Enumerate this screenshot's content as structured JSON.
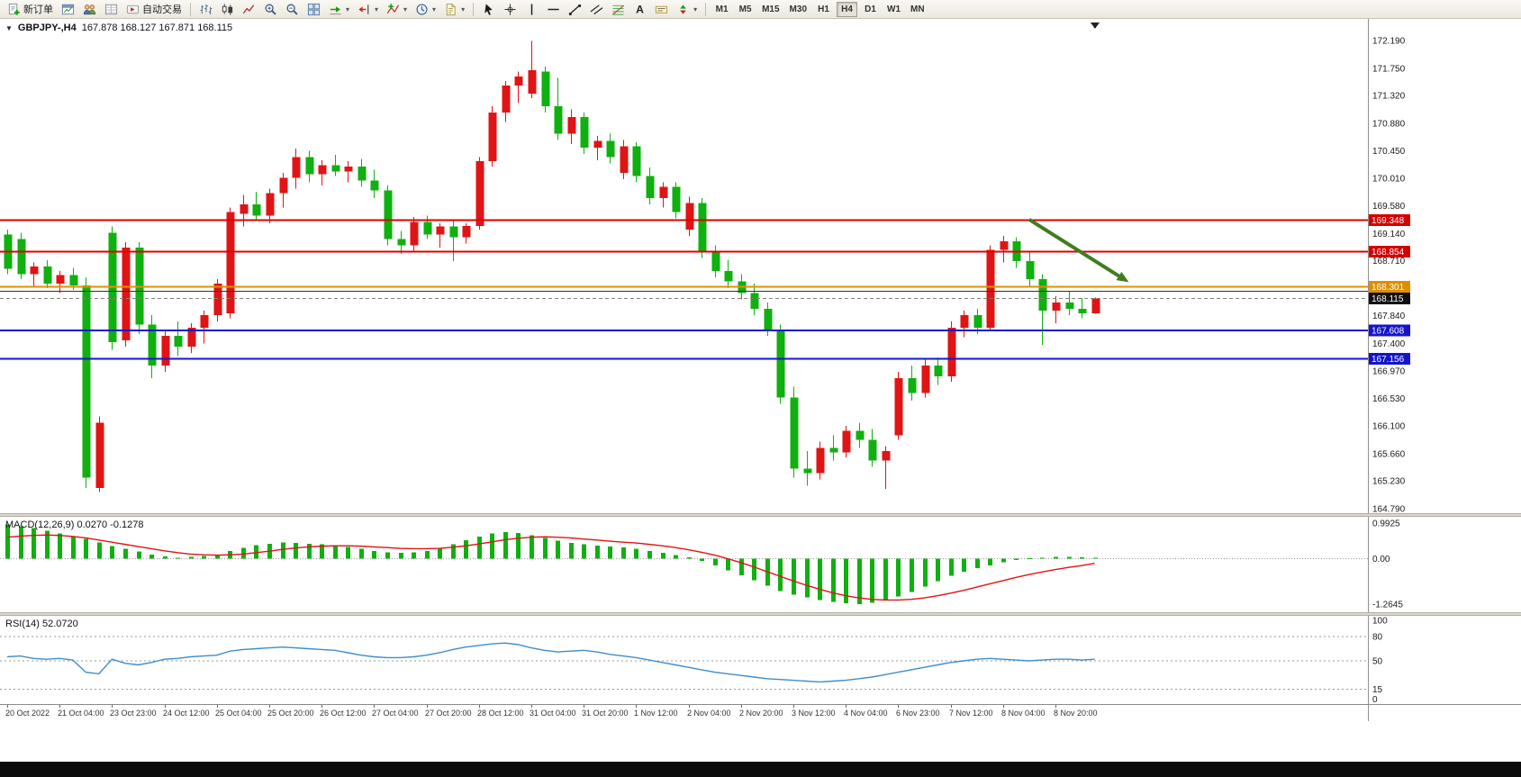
{
  "toolbar": {
    "new_order_label": "新订单",
    "autotrading_label": "自动交易",
    "left_items": [
      {
        "kind": "labeled",
        "name": "new-order-button",
        "icon": "new-order-icon",
        "label": "新订单"
      },
      {
        "kind": "icon",
        "name": "charts-button",
        "icon": "chart-window-icon"
      },
      {
        "kind": "icon",
        "name": "profiles-button",
        "icon": "profiles-icon"
      },
      {
        "kind": "icon",
        "name": "data-window-button",
        "icon": "data-window-icon"
      },
      {
        "kind": "labeled",
        "name": "autotrading-button",
        "icon": "autotrading-icon",
        "label": "自动交易"
      },
      {
        "kind": "sep"
      },
      {
        "kind": "icon",
        "name": "bar-chart-button",
        "icon": "bar-chart-icon"
      },
      {
        "kind": "icon",
        "name": "candlestick-chart-button",
        "icon": "candlestick-icon"
      },
      {
        "kind": "icon",
        "name": "line-chart-button",
        "icon": "line-chart-icon"
      },
      {
        "kind": "icon",
        "name": "zoom-in-button",
        "icon": "zoom-in-icon"
      },
      {
        "kind": "icon",
        "name": "zoom-out-button",
        "icon": "zoom-out-icon"
      },
      {
        "kind": "icon",
        "name": "tile-windows-button",
        "icon": "tile-windows-icon"
      },
      {
        "kind": "icon-dd",
        "name": "auto-scroll-button",
        "icon": "auto-scroll-icon"
      },
      {
        "kind": "icon-dd",
        "name": "chart-shift-button",
        "icon": "chart-shift-icon"
      },
      {
        "kind": "icon-dd",
        "name": "indicators-button",
        "icon": "indicators-icon"
      },
      {
        "kind": "icon-dd",
        "name": "periods-button",
        "icon": "periods-icon"
      },
      {
        "kind": "icon-dd",
        "name": "templates-button",
        "icon": "templates-icon"
      },
      {
        "kind": "sep"
      },
      {
        "kind": "icon",
        "name": "cursor-button",
        "icon": "cursor-icon"
      },
      {
        "kind": "icon",
        "name": "crosshair-button",
        "icon": "crosshair-icon"
      },
      {
        "kind": "icon",
        "name": "vertical-line-button",
        "icon": "vertical-line-icon"
      },
      {
        "kind": "icon",
        "name": "horizontal-line-button",
        "icon": "horizontal-line-icon"
      },
      {
        "kind": "icon",
        "name": "trendline-button",
        "icon": "trendline-icon"
      },
      {
        "kind": "icon",
        "name": "channel-button",
        "icon": "channel-icon"
      },
      {
        "kind": "icon",
        "name": "fibonacci-button",
        "icon": "fibonacci-icon"
      },
      {
        "kind": "icon",
        "name": "text-button",
        "icon": "text-icon"
      },
      {
        "kind": "icon",
        "name": "text-label-button",
        "icon": "text-label-icon"
      },
      {
        "kind": "icon-dd",
        "name": "arrows-button",
        "icon": "arrows-icon"
      },
      {
        "kind": "sep"
      }
    ],
    "timeframes": [
      "M1",
      "M5",
      "M15",
      "M30",
      "H1",
      "H4",
      "D1",
      "W1",
      "MN"
    ],
    "active_timeframe": "H4",
    "notification_count": "1"
  },
  "chart": {
    "title": "GBPJPY-,H4",
    "ohlc": "167.878 168.127 167.871 168.115"
  },
  "chart_data": {
    "type": "candlestick",
    "symbol": "GBPJPY-",
    "timeframe": "H4",
    "main": {
      "up_color": "#e01414",
      "down_color": "#0fb00f",
      "price_axis_labels": [
        "172.190",
        "171.750",
        "171.320",
        "170.880",
        "170.450",
        "170.010",
        "169.580",
        "169.140",
        "168.710",
        "167.840",
        "167.400",
        "166.970",
        "166.530",
        "166.100",
        "165.660",
        "165.230",
        "164.790"
      ],
      "candles": [
        [
          169.12,
          169.2,
          168.5,
          168.58
        ],
        [
          169.05,
          169.15,
          168.42,
          168.5
        ],
        [
          168.5,
          168.68,
          168.3,
          168.62
        ],
        [
          168.62,
          168.72,
          168.28,
          168.35
        ],
        [
          168.35,
          168.55,
          168.2,
          168.48
        ],
        [
          168.48,
          168.6,
          168.25,
          168.32
        ],
        [
          168.32,
          168.45,
          165.12,
          165.28
        ],
        [
          165.12,
          166.25,
          165.05,
          166.15
        ],
        [
          169.15,
          169.25,
          167.3,
          167.42
        ],
        [
          167.45,
          169.0,
          167.35,
          168.92
        ],
        [
          168.92,
          169.0,
          167.55,
          167.7
        ],
        [
          167.7,
          167.85,
          166.85,
          167.05
        ],
        [
          167.05,
          167.62,
          166.95,
          167.52
        ],
        [
          167.52,
          167.75,
          167.2,
          167.35
        ],
        [
          167.35,
          167.72,
          167.25,
          167.65
        ],
        [
          167.65,
          167.92,
          167.4,
          167.85
        ],
        [
          167.85,
          168.42,
          167.75,
          168.35
        ],
        [
          167.88,
          169.55,
          167.8,
          169.48
        ],
        [
          169.45,
          169.75,
          169.25,
          169.6
        ],
        [
          169.6,
          169.8,
          169.35,
          169.42
        ],
        [
          169.42,
          169.85,
          169.3,
          169.78
        ],
        [
          169.78,
          170.1,
          169.55,
          170.02
        ],
        [
          170.02,
          170.48,
          169.85,
          170.35
        ],
        [
          170.35,
          170.45,
          169.95,
          170.08
        ],
        [
          170.08,
          170.3,
          169.9,
          170.22
        ],
        [
          170.22,
          170.38,
          170.05,
          170.12
        ],
        [
          170.12,
          170.28,
          169.95,
          170.2
        ],
        [
          170.2,
          170.32,
          169.88,
          169.98
        ],
        [
          169.98,
          170.15,
          169.7,
          169.82
        ],
        [
          169.82,
          169.9,
          168.95,
          169.05
        ],
        [
          169.05,
          169.18,
          168.82,
          168.95
        ],
        [
          168.95,
          169.4,
          168.85,
          169.32
        ],
        [
          169.32,
          169.42,
          169.05,
          169.12
        ],
        [
          169.12,
          169.3,
          168.92,
          169.25
        ],
        [
          169.25,
          169.35,
          168.7,
          169.08
        ],
        [
          169.08,
          169.3,
          168.98,
          169.26
        ],
        [
          169.26,
          170.35,
          169.2,
          170.28
        ],
        [
          170.28,
          171.15,
          170.2,
          171.05
        ],
        [
          171.05,
          171.55,
          170.9,
          171.48
        ],
        [
          171.48,
          171.7,
          171.2,
          171.62
        ],
        [
          171.35,
          172.18,
          171.28,
          171.72
        ],
        [
          171.7,
          171.78,
          171.05,
          171.15
        ],
        [
          171.15,
          171.6,
          170.62,
          170.72
        ],
        [
          170.72,
          171.1,
          170.55,
          170.98
        ],
        [
          170.98,
          171.05,
          170.4,
          170.5
        ],
        [
          170.5,
          170.68,
          170.3,
          170.6
        ],
        [
          170.6,
          170.72,
          170.25,
          170.35
        ],
        [
          170.1,
          170.62,
          170.0,
          170.52
        ],
        [
          170.52,
          170.58,
          169.95,
          170.05
        ],
        [
          170.05,
          170.18,
          169.6,
          169.7
        ],
        [
          169.7,
          169.95,
          169.55,
          169.88
        ],
        [
          169.88,
          169.95,
          169.38,
          169.48
        ],
        [
          169.2,
          169.72,
          169.1,
          169.62
        ],
        [
          169.62,
          169.7,
          168.75,
          168.85
        ],
        [
          168.85,
          168.95,
          168.45,
          168.55
        ],
        [
          168.55,
          168.72,
          168.28,
          168.38
        ],
        [
          168.38,
          168.5,
          168.1,
          168.2
        ],
        [
          168.2,
          168.35,
          167.85,
          167.95
        ],
        [
          167.95,
          168.05,
          167.52,
          167.62
        ],
        [
          167.62,
          167.7,
          166.45,
          166.55
        ],
        [
          166.55,
          166.72,
          165.28,
          165.42
        ],
        [
          165.42,
          165.7,
          165.15,
          165.35
        ],
        [
          165.35,
          165.85,
          165.25,
          165.75
        ],
        [
          165.75,
          165.95,
          165.55,
          165.68
        ],
        [
          165.68,
          166.1,
          165.6,
          166.02
        ],
        [
          166.02,
          166.15,
          165.75,
          165.88
        ],
        [
          165.88,
          166.05,
          165.45,
          165.55
        ],
        [
          165.55,
          165.78,
          165.1,
          165.7
        ],
        [
          165.95,
          166.95,
          165.88,
          166.85
        ],
        [
          166.85,
          167.05,
          166.5,
          166.62
        ],
        [
          166.62,
          167.15,
          166.55,
          167.05
        ],
        [
          167.05,
          167.18,
          166.75,
          166.88
        ],
        [
          166.88,
          167.75,
          166.8,
          167.65
        ],
        [
          167.65,
          167.92,
          167.5,
          167.85
        ],
        [
          167.85,
          167.95,
          167.55,
          167.65
        ],
        [
          167.65,
          168.95,
          167.6,
          168.88
        ],
        [
          168.88,
          169.1,
          168.68,
          169.02
        ],
        [
          169.02,
          169.08,
          168.6,
          168.7
        ],
        [
          168.7,
          168.85,
          168.3,
          168.42
        ],
        [
          168.42,
          168.5,
          167.38,
          167.92
        ],
        [
          167.92,
          168.15,
          167.72,
          168.05
        ],
        [
          168.05,
          168.22,
          167.85,
          167.95
        ],
        [
          167.95,
          168.12,
          167.8,
          167.88
        ],
        [
          167.878,
          168.127,
          167.871,
          168.115
        ]
      ],
      "hlines": [
        {
          "price": 169.348,
          "color": "#e00000",
          "width": 2,
          "label": "169.348",
          "label_bg": "#d40000"
        },
        {
          "price": 168.854,
          "color": "#e00000",
          "width": 2,
          "label": "168.854",
          "label_bg": "#d40000"
        },
        {
          "price": 168.301,
          "color": "#e09000",
          "width": 2,
          "label": "168.301",
          "label_bg": "#dd8f00"
        },
        {
          "price": 168.225,
          "color": "#303030",
          "width": 1
        },
        {
          "price": 167.608,
          "color": "#1616d0",
          "width": 2,
          "label": "167.608",
          "label_bg": "#1414cc"
        },
        {
          "price": 167.156,
          "color": "#1616d0",
          "width": 2,
          "label": "167.156",
          "label_bg": "#1414cc"
        }
      ],
      "bid_line": {
        "price": 168.115,
        "label": "168.115",
        "label_bg": "#101010",
        "color": "#808080"
      },
      "arrow": {
        "from_index": 78,
        "from_price": 169.36,
        "to_index": 85.6,
        "to_price": 168.37,
        "color": "#3f7d1e",
        "width": 4
      },
      "date_labels": [
        "20 Oct 2022",
        "21 Oct 04:00",
        "23 Oct 23:00",
        "24 Oct 12:00",
        "25 Oct 04:00",
        "25 Oct 20:00",
        "26 Oct 12:00",
        "27 Oct 04:00",
        "27 Oct 20:00",
        "28 Oct 12:00",
        "31 Oct 04:00",
        "31 Oct 20:00",
        "1 Nov 12:00",
        "2 Nov 04:00",
        "2 Nov 20:00",
        "3 Nov 12:00",
        "4 Nov 04:00",
        "6 Nov 23:00",
        "7 Nov 12:00",
        "8 Nov 04:00",
        "8 Nov 20:00"
      ]
    },
    "macd": {
      "label": "MACD(12,26,9) 0.0270 -0.1278",
      "axis_labels": [
        "0.9925",
        "0.00",
        "-1.2645"
      ],
      "hist_color": "#0fb00f",
      "signal_color": "#e01414",
      "hist": [
        0.95,
        0.9,
        0.85,
        0.78,
        0.7,
        0.62,
        0.55,
        0.45,
        0.35,
        0.28,
        0.2,
        0.12,
        0.06,
        0.03,
        0.05,
        0.08,
        0.12,
        0.22,
        0.3,
        0.38,
        0.42,
        0.45,
        0.44,
        0.42,
        0.4,
        0.38,
        0.33,
        0.28,
        0.22,
        0.18,
        0.16,
        0.18,
        0.22,
        0.3,
        0.4,
        0.52,
        0.62,
        0.7,
        0.74,
        0.72,
        0.66,
        0.58,
        0.5,
        0.44,
        0.4,
        0.36,
        0.34,
        0.32,
        0.28,
        0.22,
        0.16,
        0.1,
        0.04,
        -0.06,
        -0.18,
        -0.32,
        -0.46,
        -0.6,
        -0.75,
        -0.9,
        -1.0,
        -1.08,
        -1.15,
        -1.2,
        -1.24,
        -1.26,
        -1.23,
        -1.16,
        -1.05,
        -0.92,
        -0.78,
        -0.62,
        -0.48,
        -0.36,
        -0.26,
        -0.18,
        -0.1,
        -0.04,
        0.01,
        0.03,
        0.05,
        0.05,
        0.04,
        0.027
      ],
      "signal": [
        0.6,
        0.63,
        0.65,
        0.66,
        0.65,
        0.62,
        0.58,
        0.52,
        0.46,
        0.4,
        0.34,
        0.28,
        0.22,
        0.17,
        0.13,
        0.11,
        0.1,
        0.11,
        0.13,
        0.17,
        0.21,
        0.26,
        0.3,
        0.33,
        0.35,
        0.36,
        0.36,
        0.35,
        0.33,
        0.31,
        0.29,
        0.28,
        0.28,
        0.29,
        0.32,
        0.36,
        0.41,
        0.47,
        0.53,
        0.57,
        0.6,
        0.61,
        0.6,
        0.58,
        0.55,
        0.52,
        0.49,
        0.46,
        0.44,
        0.4,
        0.36,
        0.31,
        0.25,
        0.18,
        0.1,
        0.0,
        -0.11,
        -0.23,
        -0.36,
        -0.49,
        -0.62,
        -0.74,
        -0.85,
        -0.95,
        -1.03,
        -1.09,
        -1.13,
        -1.15,
        -1.15,
        -1.13,
        -1.09,
        -1.03,
        -0.96,
        -0.88,
        -0.79,
        -0.7,
        -0.61,
        -0.52,
        -0.44,
        -0.37,
        -0.3,
        -0.24,
        -0.19,
        -0.1278
      ]
    },
    "rsi": {
      "label": "RSI(14) 52.0720",
      "axis_labels": [
        "100",
        "80",
        "50",
        "15",
        "0"
      ],
      "levels": [
        80,
        50,
        15
      ],
      "color": "#3e8ecc",
      "values": [
        55,
        56,
        53,
        52,
        53,
        51,
        36,
        34,
        52,
        47,
        45,
        48,
        52,
        53,
        55,
        56,
        57,
        62,
        64,
        65,
        66,
        67,
        66,
        65,
        64,
        63,
        60,
        57,
        55,
        54,
        54,
        55,
        57,
        60,
        64,
        67,
        69,
        71,
        72,
        70,
        66,
        63,
        61,
        62,
        63,
        61,
        58,
        56,
        54,
        51,
        48,
        45,
        42,
        39,
        36,
        34,
        32,
        30,
        28,
        27,
        26,
        25,
        24,
        25,
        26,
        28,
        30,
        33,
        36,
        39,
        42,
        45,
        48,
        50,
        52,
        53,
        52,
        51,
        50,
        51,
        52,
        52,
        51,
        52.07
      ]
    }
  }
}
